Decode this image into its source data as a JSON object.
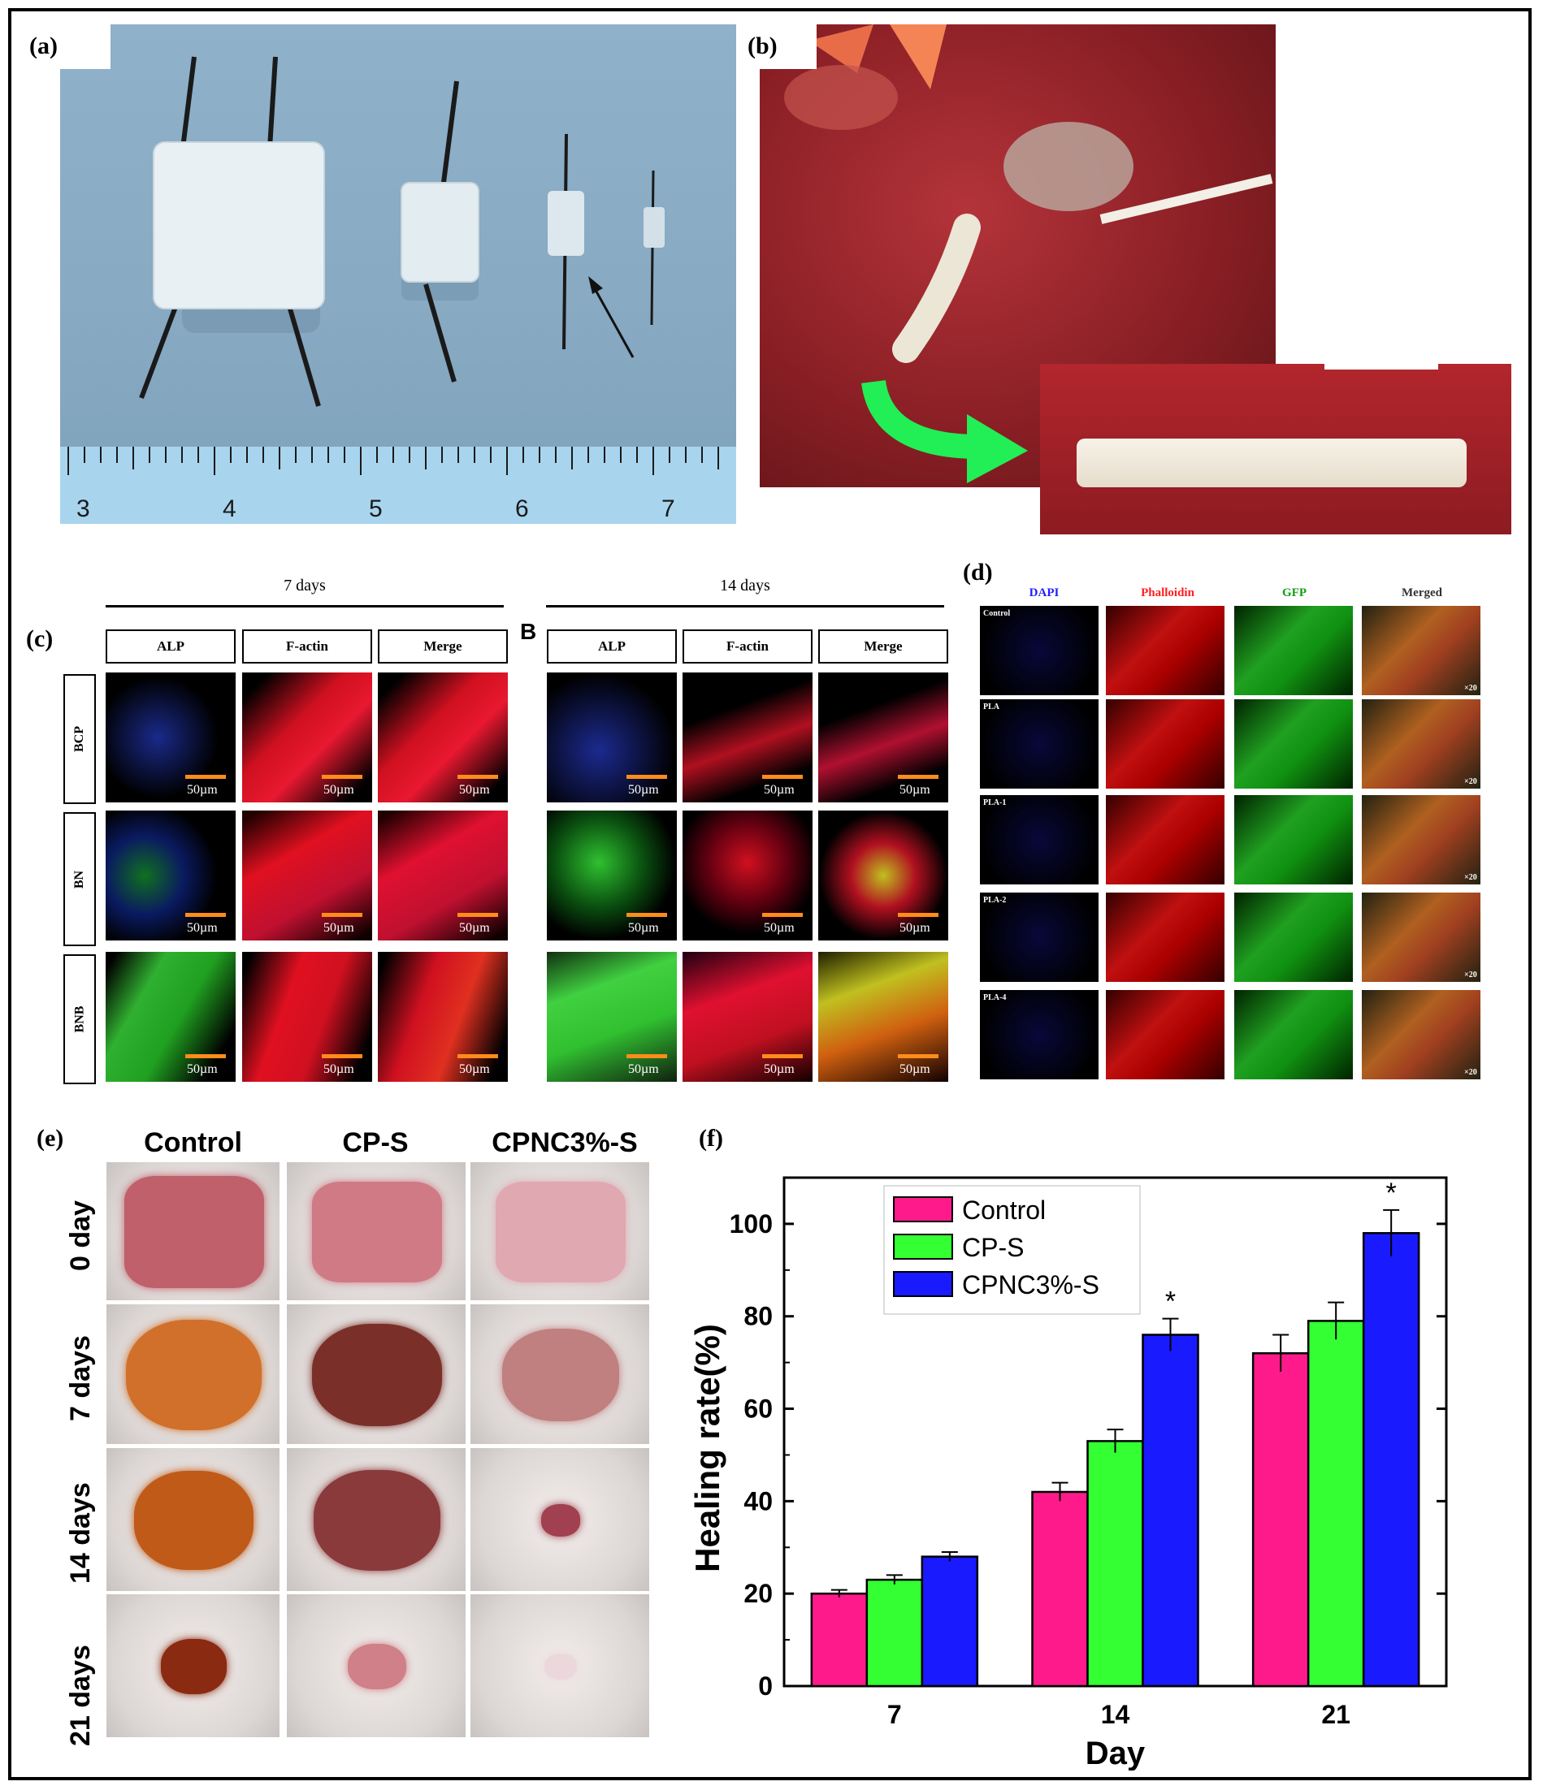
{
  "panels": {
    "a": {
      "label": "(a)",
      "ruler_numbers": [
        "3",
        "4",
        "5",
        "6",
        "7"
      ]
    },
    "b": {
      "label": "(b)"
    },
    "c": {
      "label": "(c)",
      "B_label": "B",
      "group1_title": "7 days",
      "group2_title": "14 days",
      "columns": [
        "ALP",
        "F-actin",
        "Merge"
      ],
      "rows": [
        "BCP",
        "BN",
        "BNB"
      ],
      "scale_text": "50µm"
    },
    "d": {
      "label": "(d)",
      "columns": [
        "DAPI",
        "Phalloidin",
        "GFP",
        "Merged"
      ],
      "rows": [
        "Control",
        "PLA",
        "PLA-1",
        "PLA-2",
        "PLA-4"
      ],
      "magnification": "×20"
    },
    "e": {
      "label": "(e)",
      "columns": [
        "Control",
        "CP-S",
        "CPNC3%-S"
      ],
      "rows": [
        "0 day",
        "7 days",
        "14 days",
        "21 days"
      ]
    },
    "f": {
      "label": "(f)"
    }
  },
  "colors": {
    "control": "#ff1a8c",
    "cps": "#33ff33",
    "cpnc": "#1a1aff",
    "scalebar": "#ff8c1a"
  },
  "chart_data": {
    "type": "bar",
    "categories": [
      "7",
      "14",
      "21"
    ],
    "series": [
      {
        "name": "Control",
        "values": [
          20,
          42,
          72
        ],
        "errors": [
          0.8,
          2,
          4
        ]
      },
      {
        "name": "CP-S",
        "values": [
          23,
          53,
          79
        ],
        "errors": [
          1,
          2.5,
          4
        ]
      },
      {
        "name": "CPNC3%-S",
        "values": [
          28,
          76,
          98
        ],
        "errors": [
          1,
          3.5,
          5
        ]
      }
    ],
    "significance": [
      "",
      "*",
      "*"
    ],
    "xlabel": "Day",
    "ylabel": "Healing rate(%)",
    "ylim": [
      0,
      110
    ],
    "yticks": [
      0,
      20,
      40,
      60,
      80,
      100
    ],
    "legend_position": "top-left"
  }
}
